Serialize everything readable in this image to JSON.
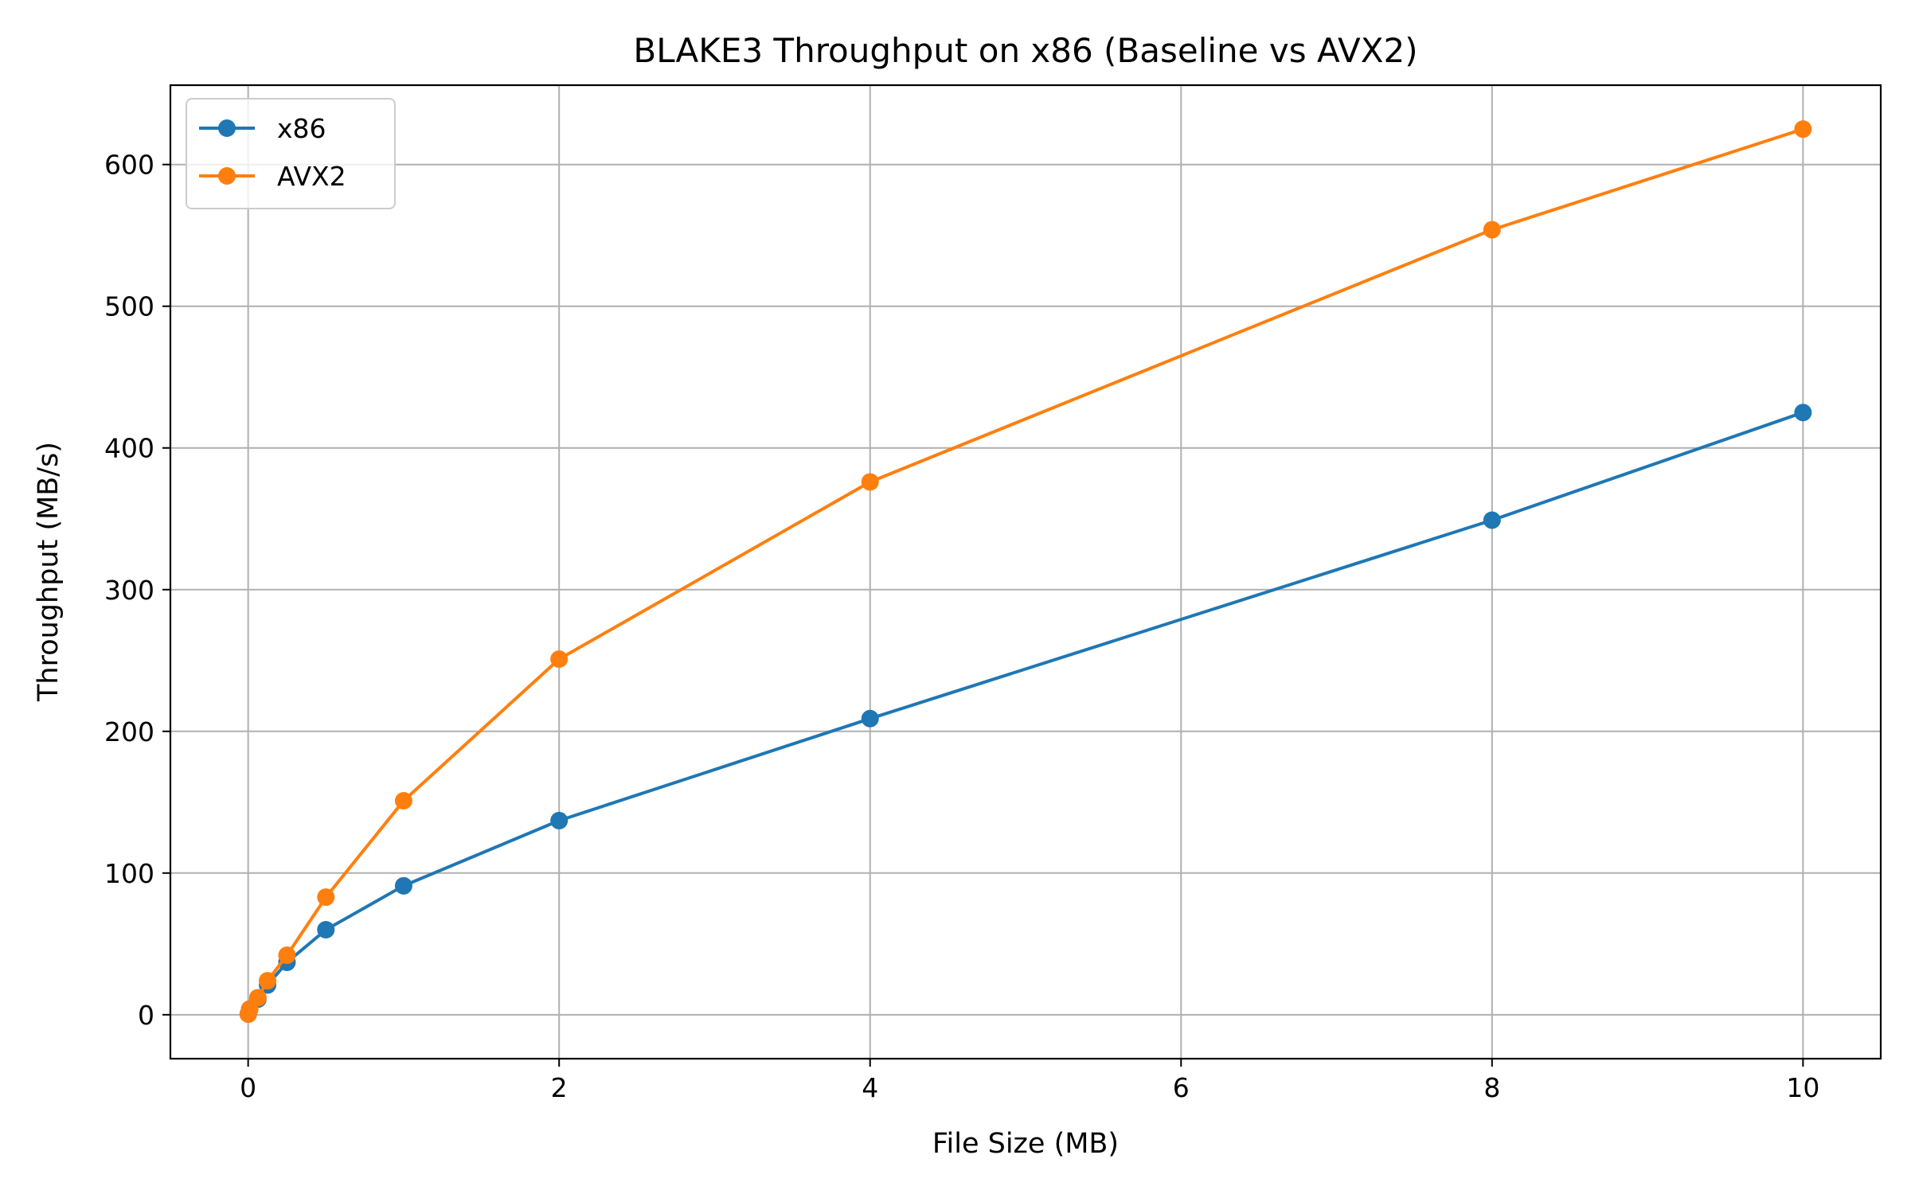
{
  "chart_data": {
    "type": "line",
    "title": "BLAKE3 Throughput on x86 (Baseline vs AVX2)",
    "xlabel": "File Size (MB)",
    "ylabel": "Throughput (MB/s)",
    "xlim": [
      -0.5,
      10.5
    ],
    "ylim": [
      -31,
      656
    ],
    "xticks": [
      0,
      2,
      4,
      6,
      8,
      10
    ],
    "yticks": [
      0,
      100,
      200,
      300,
      400,
      500,
      600
    ],
    "grid": true,
    "legend_position": "top-left",
    "series": [
      {
        "name": "x86",
        "color": "#1f77b4",
        "x": [
          0.001,
          0.01,
          0.0625,
          0.125,
          0.25,
          0.5,
          1,
          2,
          4,
          8,
          10
        ],
        "y": [
          0.5,
          4,
          11,
          21,
          37,
          60,
          91,
          137,
          209,
          349,
          425
        ]
      },
      {
        "name": "AVX2",
        "color": "#ff7f0e",
        "x": [
          0.001,
          0.01,
          0.0625,
          0.125,
          0.25,
          0.5,
          1,
          2,
          4,
          8,
          10
        ],
        "y": [
          0.5,
          4,
          12,
          24,
          42,
          83,
          151,
          251,
          376,
          554,
          625
        ]
      }
    ]
  }
}
